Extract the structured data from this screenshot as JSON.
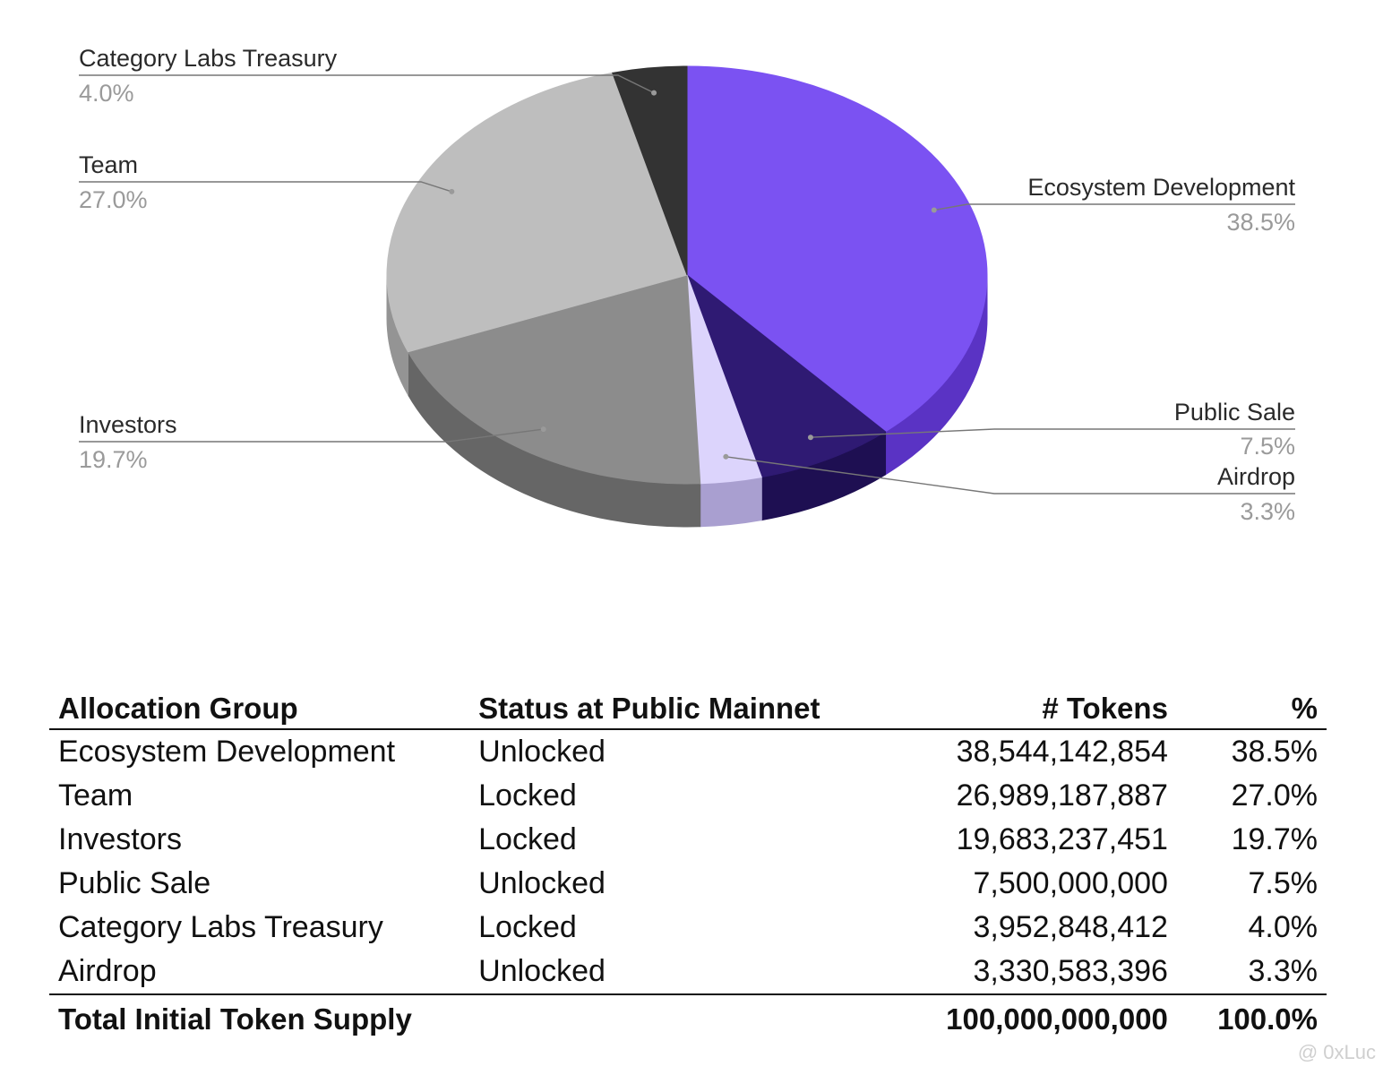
{
  "chart_data": {
    "type": "pie",
    "title": "",
    "slices": [
      {
        "label": "Ecosystem Development",
        "value": 38.5,
        "pct_label": "38.5%",
        "color": "#7b52f2",
        "side_color": "#5a33c4"
      },
      {
        "label": "Public Sale",
        "value": 7.5,
        "pct_label": "7.5%",
        "color": "#2f1a73",
        "side_color": "#1e0f52"
      },
      {
        "label": "Airdrop",
        "value": 3.3,
        "pct_label": "3.3%",
        "color": "#dcd4fc",
        "side_color": "#a99fd0"
      },
      {
        "label": "Investors",
        "value": 19.7,
        "pct_label": "19.7%",
        "color": "#8c8c8c",
        "side_color": "#666666"
      },
      {
        "label": "Team",
        "value": 27.0,
        "pct_label": "27.0%",
        "color": "#bebebe",
        "side_color": "#949494"
      },
      {
        "label": "Category Labs Treasury",
        "value": 4.0,
        "pct_label": "4.0%",
        "color": "#333333",
        "side_color": "#1f1f1f"
      }
    ]
  },
  "table": {
    "headers": [
      "Allocation Group",
      "Status at Public Mainnet",
      "# Tokens",
      "%"
    ],
    "rows": [
      [
        "Ecosystem Development",
        "Unlocked",
        "38,544,142,854",
        "38.5%"
      ],
      [
        "Team",
        "Locked",
        "26,989,187,887",
        "27.0%"
      ],
      [
        "Investors",
        "Locked",
        "19,683,237,451",
        "19.7%"
      ],
      [
        "Public Sale",
        "Unlocked",
        "7,500,000,000",
        "7.5%"
      ],
      [
        "Category Labs Treasury",
        "Locked",
        "3,952,848,412",
        "4.0%"
      ],
      [
        "Airdrop",
        "Unlocked",
        "3,330,583,396",
        "3.3%"
      ]
    ],
    "total": [
      "Total Initial Token Supply",
      "",
      "100,000,000,000",
      "100.0%"
    ]
  },
  "watermark": "@ 0xLuc"
}
